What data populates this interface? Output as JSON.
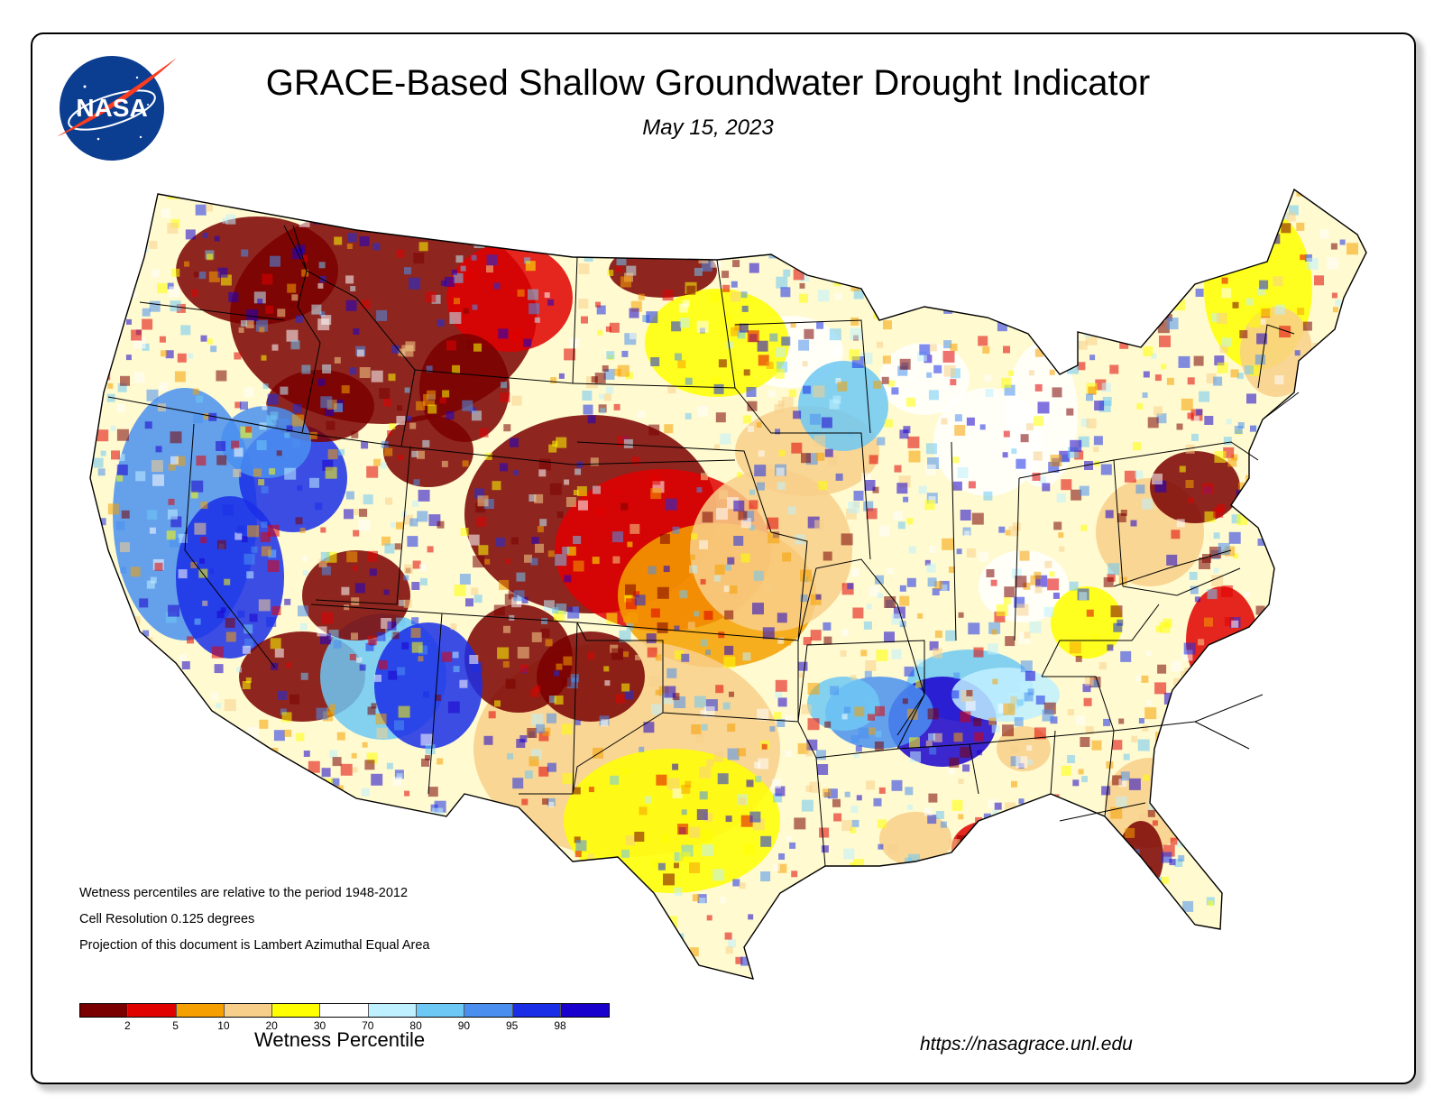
{
  "header": {
    "title": "GRACE-Based Shallow Groundwater Drought Indicator",
    "date": "May 15, 2023",
    "logo_text": "NASA"
  },
  "notes": [
    "Wetness percentiles are relative to the period 1948-2012",
    "Cell Resolution 0.125 degrees",
    "Projection of this document is Lambert Azimuthal Equal Area"
  ],
  "legend": {
    "label": "Wetness Percentile",
    "ticks": [
      "2",
      "5",
      "10",
      "20",
      "30",
      "70",
      "80",
      "90",
      "95",
      "98"
    ],
    "colors": [
      "#7a0000",
      "#e00000",
      "#f5a000",
      "#f8cf8a",
      "#ffff00",
      "#ffffff",
      "#bff0ff",
      "#6ec8f5",
      "#4a8ff0",
      "#1a2ee8",
      "#1a00cc"
    ]
  },
  "map": {
    "region": "Contiguous United States",
    "dominant_conditions": [
      {
        "area": "Northern Rockies / Montana / Idaho",
        "category": "dry",
        "color": "#7a0000"
      },
      {
        "area": "Central Plains / Kansas / Nebraska",
        "category": "dry",
        "color": "#7a0000"
      },
      {
        "area": "California / Nevada / Four Corners",
        "category": "wet",
        "color": "#4a8ff0"
      },
      {
        "area": "Lower Mississippi Valley",
        "category": "wet",
        "color": "#1a2ee8"
      },
      {
        "area": "Texas",
        "category": "moderately dry",
        "color": "#f8cf8a"
      }
    ]
  },
  "footer": {
    "url": "https://nasagrace.unl.edu"
  }
}
